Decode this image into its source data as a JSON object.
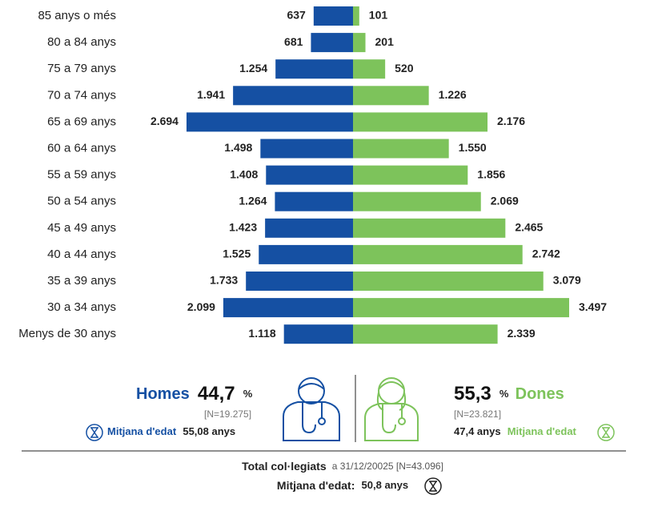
{
  "chart_data": {
    "type": "pyramid",
    "categories": [
      "85 anys o més",
      "80 a 84 anys",
      "75 a 79 anys",
      "70 a 74 anys",
      "65 a 69 anys",
      "60 a 64 anys",
      "55 a 59 anys",
      "50 a 54 anys",
      "45 a 49 anys",
      "40 a 44 anys",
      "35 a 39 anys",
      "30 a 34 anys",
      "Menys de 30 anys"
    ],
    "series": [
      {
        "name": "Homes",
        "color": "#1550a3",
        "values": [
          637,
          681,
          1254,
          1941,
          2694,
          1498,
          1408,
          1264,
          1423,
          1525,
          1733,
          2099,
          1118
        ],
        "value_labels": [
          "637",
          "681",
          "1.254",
          "1.941",
          "2.694",
          "1.498",
          "1.408",
          "1.264",
          "1.423",
          "1.525",
          "1.733",
          "2.099",
          "1.118"
        ]
      },
      {
        "name": "Dones",
        "color": "#7dc35b",
        "values": [
          101,
          201,
          520,
          1226,
          2176,
          1550,
          1856,
          2069,
          2465,
          2742,
          3079,
          3497,
          2339
        ],
        "value_labels": [
          "101",
          "201",
          "520",
          "1.226",
          "2.176",
          "1.550",
          "1.856",
          "2.069",
          "2.465",
          "2.742",
          "3.079",
          "3.497",
          "2.339"
        ]
      }
    ]
  },
  "summary": {
    "men": {
      "percent": "44,7",
      "percent_sign": "%",
      "n": "[N=19.275]",
      "mean_label": "Mitjana d'edat",
      "mean": "55,08 anys"
    },
    "women": {
      "percent": "55,3",
      "percent_sign": "%",
      "n": "[N=23.821]",
      "mean_label": "Mitjana d'edat",
      "mean": "47,4 anys"
    },
    "total": {
      "label": "Total col·legiats",
      "detail": "a 31/12/20025 [N=43.096]",
      "mean_label": "Mitjana d'edat:",
      "mean": "50,8 anys"
    }
  }
}
